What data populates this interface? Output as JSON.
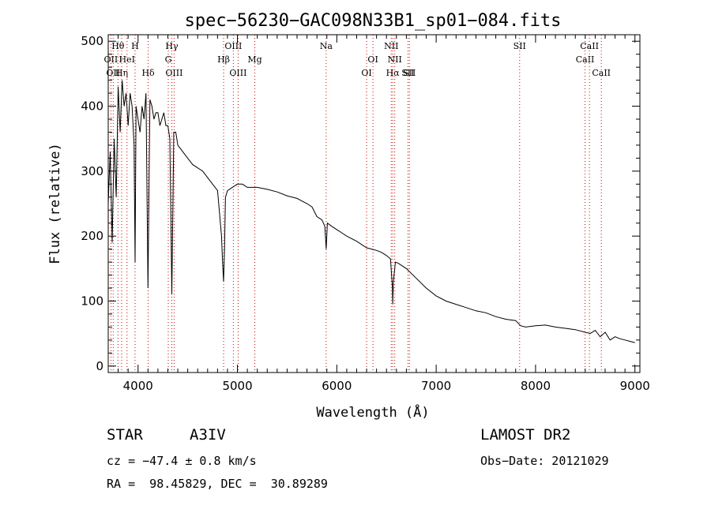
{
  "chart_data": {
    "type": "line",
    "title": "spec−56230−GAC098N33B1_sp01−084.fits",
    "xlabel": "Wavelength (Å)",
    "ylabel": "Flux (relative)",
    "xlim": [
      3700,
      9050
    ],
    "ylim": [
      -10,
      510
    ],
    "x_ticks": [
      4000,
      5000,
      6000,
      7000,
      8000,
      9000
    ],
    "y_ticks": [
      0,
      100,
      200,
      300,
      400,
      500
    ],
    "grid": false,
    "line_color": "#000000",
    "marker_color": "#cc0000",
    "series": [
      {
        "x": [
          3700,
          3720,
          3740,
          3760,
          3780,
          3800,
          3820,
          3840,
          3860,
          3880,
          3900,
          3920,
          3940,
          3960,
          3970,
          3980,
          4000,
          4020,
          4040,
          4060,
          4080,
          4100,
          4120,
          4140,
          4160,
          4180,
          4200,
          4220,
          4240,
          4260,
          4280,
          4300,
          4320,
          4340,
          4360,
          4380,
          4400,
          4450,
          4500,
          4550,
          4600,
          4650,
          4700,
          4750,
          4800,
          4840,
          4850,
          4861,
          4870,
          4880,
          4900,
          4950,
          5000,
          5050,
          5100,
          5200,
          5300,
          5400,
          5500,
          5600,
          5700,
          5750,
          5800,
          5850,
          5880,
          5893,
          5905,
          5950,
          6000,
          6050,
          6100,
          6200,
          6300,
          6350,
          6400,
          6450,
          6500,
          6540,
          6560,
          6563,
          6570,
          6590,
          6620,
          6700,
          6800,
          6900,
          7000,
          7100,
          7200,
          7300,
          7400,
          7500,
          7600,
          7700,
          7800,
          7850,
          7900,
          8000,
          8100,
          8200,
          8300,
          8400,
          8500,
          8550,
          8600,
          8650,
          8700,
          8750,
          8800,
          8850,
          8900,
          8950,
          9000
        ],
        "y": [
          250,
          330,
          190,
          350,
          260,
          430,
          360,
          440,
          400,
          420,
          370,
          420,
          400,
          340,
          160,
          400,
          380,
          360,
          400,
          380,
          420,
          120,
          410,
          400,
          380,
          390,
          390,
          370,
          380,
          390,
          370,
          370,
          350,
          110,
          360,
          360,
          340,
          330,
          320,
          310,
          305,
          300,
          290,
          280,
          270,
          200,
          160,
          130,
          180,
          260,
          270,
          275,
          280,
          280,
          275,
          275,
          272,
          268,
          262,
          258,
          250,
          245,
          230,
          225,
          215,
          180,
          220,
          215,
          210,
          205,
          200,
          192,
          182,
          180,
          178,
          175,
          170,
          165,
          120,
          95,
          130,
          160,
          158,
          150,
          135,
          120,
          108,
          100,
          95,
          90,
          85,
          82,
          76,
          72,
          70,
          62,
          60,
          62,
          63,
          60,
          58,
          56,
          52,
          50,
          55,
          45,
          52,
          40,
          45,
          42,
          40,
          38,
          36
        ]
      }
    ],
    "line_markers": [
      {
        "wl": 3727,
        "labels": [
          "OII"
        ],
        "tier": 2
      },
      {
        "wl": 3750,
        "labels": [
          "OII"
        ],
        "tier": 3
      },
      {
        "wl": 3798,
        "labels": [
          "Hθ"
        ],
        "tier": 1
      },
      {
        "wl": 3835,
        "labels": [
          "Hη"
        ],
        "tier": 3
      },
      {
        "wl": 3889,
        "labels": [
          "HeI"
        ],
        "tier": 2
      },
      {
        "wl": 3970,
        "labels": [
          "H"
        ],
        "tier": 1
      },
      {
        "wl": 4102,
        "labels": [
          "Hδ"
        ],
        "tier": 3
      },
      {
        "wl": 4304,
        "labels": [
          "G"
        ],
        "tier": 2
      },
      {
        "wl": 4340,
        "labels": [
          "Hγ"
        ],
        "tier": 1
      },
      {
        "wl": 4363,
        "labels": [
          "OIII"
        ],
        "tier": 3
      },
      {
        "wl": 4861,
        "labels": [
          "Hβ"
        ],
        "tier": 2
      },
      {
        "wl": 4959,
        "labels": [
          "OIII"
        ],
        "tier": 1
      },
      {
        "wl": 5007,
        "labels": [
          "OIII"
        ],
        "tier": 3
      },
      {
        "wl": 5175,
        "labels": [
          "Mg"
        ],
        "tier": 2
      },
      {
        "wl": 5893,
        "labels": [
          "Na"
        ],
        "tier": 1
      },
      {
        "wl": 6300,
        "labels": [
          "OI"
        ],
        "tier": 3
      },
      {
        "wl": 6364,
        "labels": [
          "OI"
        ],
        "tier": 2
      },
      {
        "wl": 6548,
        "labels": [
          "NII"
        ],
        "tier": 1
      },
      {
        "wl": 6563,
        "labels": [
          "Hα"
        ],
        "tier": 3
      },
      {
        "wl": 6583,
        "labels": [
          "NII"
        ],
        "tier": 2
      },
      {
        "wl": 6716,
        "labels": [
          "SII"
        ],
        "tier": 3
      },
      {
        "wl": 6731,
        "labels": [
          "SII"
        ],
        "tier": 3
      },
      {
        "wl": 7840,
        "labels": [
          "SII"
        ],
        "tier": 1
      },
      {
        "wl": 8498,
        "labels": [
          "CaII"
        ],
        "tier": 2
      },
      {
        "wl": 8542,
        "labels": [
          "CaII"
        ],
        "tier": 1
      },
      {
        "wl": 8662,
        "labels": [
          "CaII"
        ],
        "tier": 3
      }
    ]
  },
  "info": {
    "object_class": "STAR",
    "subclass": "A3IV",
    "survey": "LAMOST DR2",
    "cz": "cz = −47.4 ± 0.8 km/s",
    "obs_date": "Obs−Date: 20121029",
    "radec": "RA =  98.45829, DEC =  30.89289"
  }
}
